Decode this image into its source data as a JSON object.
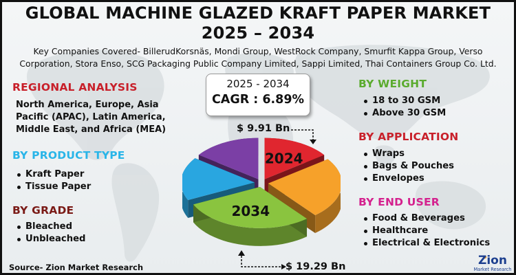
{
  "title_line1": "GLOBAL MACHINE GLAZED KRAFT PAPER MARKET",
  "title_line2": "2025 – 2034",
  "companies": "Key Companies Covered- BillerudKorsnäs, Mondi Group, WestRock Company, Smurfit Kappa Group, Verso Corporation, Stora Enso, SCG Packaging Public Company Limited, Sappi Limited, Thai Containers Group Co. Ltd.",
  "regional": {
    "heading": "REGIONAL ANALYSIS",
    "text": "North America, Europe, Asia Pacific (APAC), Latin America, Middle East, and Africa (MEA)"
  },
  "product_type": {
    "heading": "BY PRODUCT TYPE",
    "items": [
      "Kraft Paper",
      "Tissue Paper"
    ]
  },
  "grade": {
    "heading": "BY GRADE",
    "items": [
      "Bleached",
      "Unbleached"
    ]
  },
  "weight": {
    "heading": "BY WEIGHT",
    "items": [
      "18 to 30 GSM",
      "Above 30 GSM"
    ]
  },
  "application": {
    "heading": "BY APPLICATION",
    "items": [
      "Wraps",
      "Bags & Pouches",
      "Envelopes"
    ]
  },
  "end_user": {
    "heading": "BY END USER",
    "items": [
      "Food & Beverages",
      "Healthcare",
      "Electrical & Electronics"
    ]
  },
  "cagr": {
    "period": "2025 - 2034",
    "label": "CAGR : 6.89%"
  },
  "source": "Source- Zion Market Research",
  "logo": {
    "word": "Zion",
    "sub": "Market Research"
  },
  "chart_data": {
    "type": "pie",
    "title": "",
    "slices": [
      {
        "label": "2024",
        "value": 15,
        "color": "#e0262f"
      },
      {
        "label": "",
        "value": 24,
        "color": "#f6a12a"
      },
      {
        "label": "2034",
        "value": 29,
        "color": "#8ac43f"
      },
      {
        "label": "",
        "value": 17,
        "color": "#29a6e0"
      },
      {
        "label": "",
        "value": 15,
        "color": "#7b3fa5"
      }
    ],
    "annotations": [
      {
        "text": "$ 9.91 Bn",
        "year": "2024"
      },
      {
        "text": "$ 19.29 Bn",
        "year": "2034"
      }
    ],
    "colors": {
      "dark": "#111111"
    }
  }
}
